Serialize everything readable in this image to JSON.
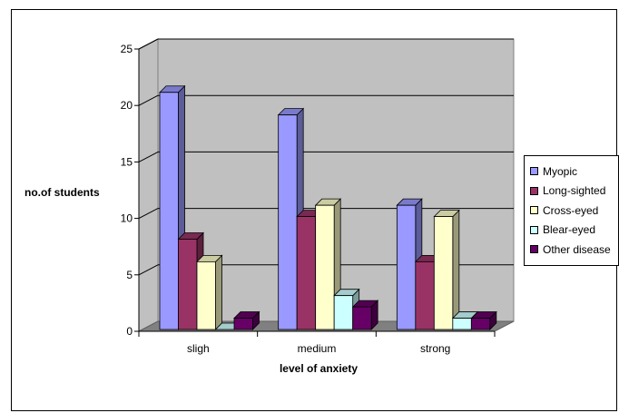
{
  "chart_data": {
    "type": "bar",
    "title": "",
    "xlabel": "level of anxiety",
    "ylabel": "no.of students",
    "categories": [
      "sligh",
      "medium",
      "strong"
    ],
    "ylim": [
      0,
      25
    ],
    "yticks": [
      0,
      5,
      10,
      15,
      20,
      25
    ],
    "grid": true,
    "legend_position": "right",
    "series": [
      {
        "name": "Myopic",
        "values": [
          21,
          19,
          11
        ],
        "color": "#9999ff"
      },
      {
        "name": "Long-sighted",
        "values": [
          8,
          10,
          6
        ],
        "color": "#993366"
      },
      {
        "name": "Cross-eyed",
        "values": [
          6,
          11,
          10
        ],
        "color": "#ffffcc"
      },
      {
        "name": "Blear-eyed",
        "values": [
          0,
          3,
          1
        ],
        "color": "#ccffff"
      },
      {
        "name": "Other disease",
        "values": [
          1,
          2,
          1
        ],
        "color": "#660066"
      }
    ],
    "wall_color": "#c0c0c0"
  }
}
